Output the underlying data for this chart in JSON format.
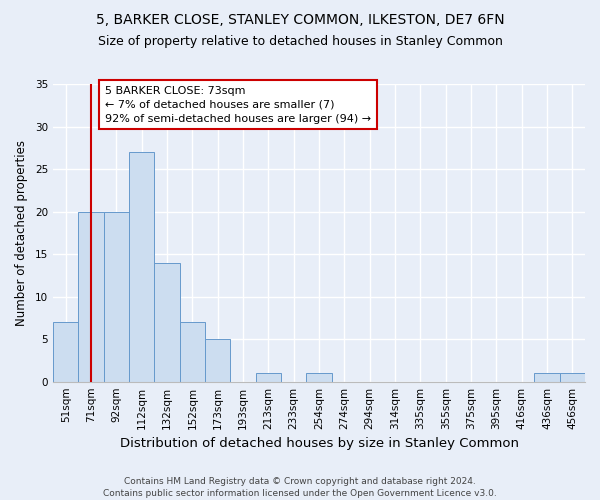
{
  "title": "5, BARKER CLOSE, STANLEY COMMON, ILKESTON, DE7 6FN",
  "subtitle": "Size of property relative to detached houses in Stanley Common",
  "xlabel": "Distribution of detached houses by size in Stanley Common",
  "ylabel": "Number of detached properties",
  "categories": [
    "51sqm",
    "71sqm",
    "92sqm",
    "112sqm",
    "132sqm",
    "152sqm",
    "173sqm",
    "193sqm",
    "213sqm",
    "233sqm",
    "254sqm",
    "274sqm",
    "294sqm",
    "314sqm",
    "335sqm",
    "355sqm",
    "375sqm",
    "395sqm",
    "416sqm",
    "436sqm",
    "456sqm"
  ],
  "values": [
    7,
    20,
    20,
    27,
    14,
    7,
    5,
    0,
    1,
    0,
    1,
    0,
    0,
    0,
    0,
    0,
    0,
    0,
    0,
    1,
    1
  ],
  "bar_color": "#ccddf0",
  "bar_edge_color": "#6699cc",
  "background_color": "#e8eef8",
  "grid_color": "#ffffff",
  "vline_x": 1,
  "vline_color": "#cc0000",
  "annotation_text": "5 BARKER CLOSE: 73sqm\n← 7% of detached houses are smaller (7)\n92% of semi-detached houses are larger (94) →",
  "annotation_box_facecolor": "#ffffff",
  "annotation_box_edgecolor": "#cc0000",
  "footnote": "Contains HM Land Registry data © Crown copyright and database right 2024.\nContains public sector information licensed under the Open Government Licence v3.0.",
  "ylim": [
    0,
    35
  ],
  "yticks": [
    0,
    5,
    10,
    15,
    20,
    25,
    30,
    35
  ],
  "title_fontsize": 10,
  "subtitle_fontsize": 9,
  "xlabel_fontsize": 9.5,
  "ylabel_fontsize": 8.5,
  "tick_fontsize": 7.5,
  "annotation_fontsize": 8,
  "footnote_fontsize": 6.5
}
